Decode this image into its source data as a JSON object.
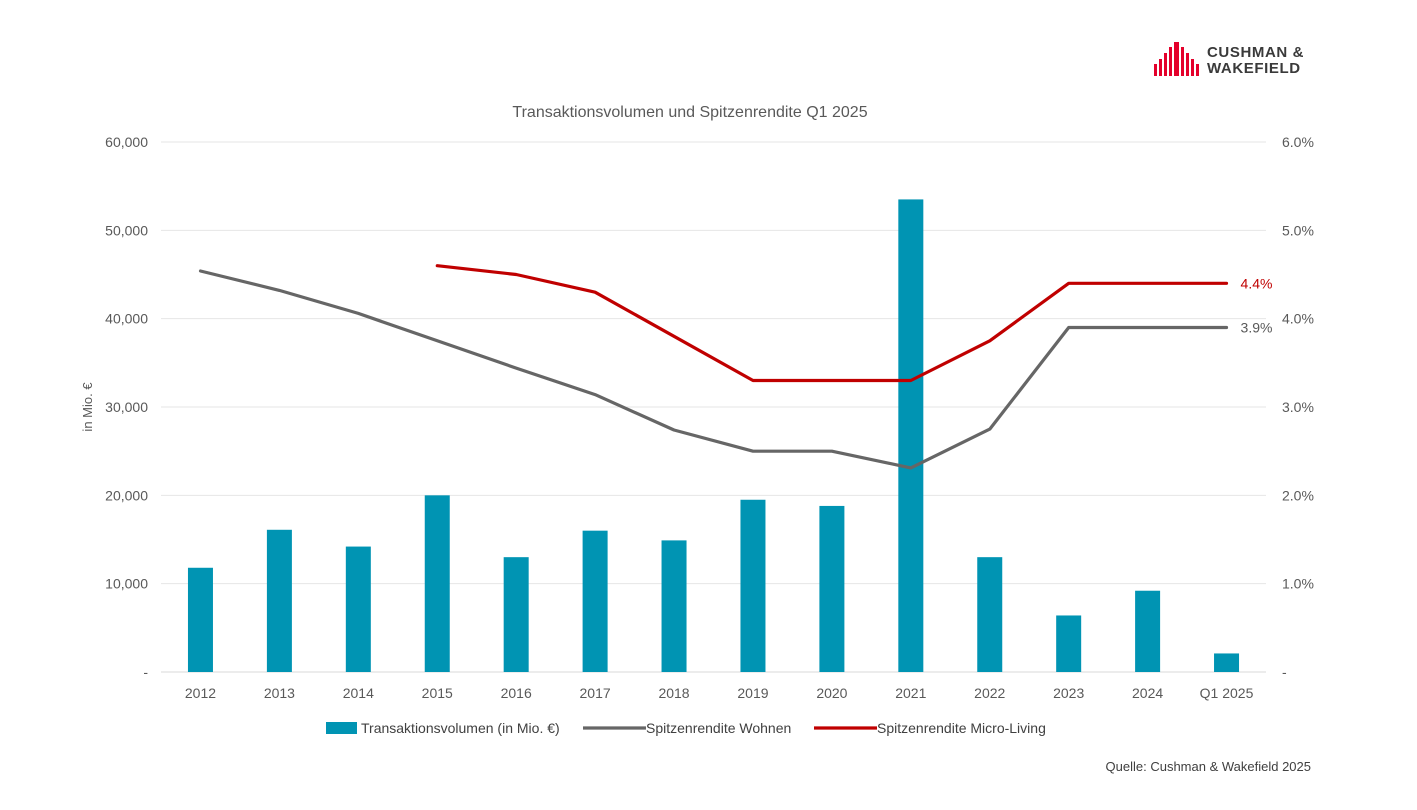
{
  "logo": {
    "line1": "CUSHMAN &",
    "line2": "WAKEFIELD"
  },
  "source": "Quelle: Cushman & Wakefield 2025",
  "chart_data": {
    "type": "bar+line",
    "title": "Transaktionsvolumen und Spitzenrendite Q1 2025",
    "ylabel": "in Mio. €",
    "y2label": "",
    "categories": [
      "2012",
      "2013",
      "2014",
      "2015",
      "2016",
      "2017",
      "2018",
      "2019",
      "2020",
      "2021",
      "2022",
      "2023",
      "2024",
      "Q1 2025"
    ],
    "ylim": [
      0,
      60000
    ],
    "y2lim": [
      0,
      6.0
    ],
    "y_ticks": [
      "-",
      "10,000",
      "20,000",
      "30,000",
      "40,000",
      "50,000",
      "60,000"
    ],
    "y2_ticks": [
      "-",
      "1.0%",
      "2.0%",
      "3.0%",
      "4.0%",
      "5.0%",
      "6.0%"
    ],
    "grid": true,
    "legend_position": "bottom",
    "series": [
      {
        "name": "Transaktionsvolumen (in Mio. €)",
        "type": "bar",
        "axis": "left",
        "color": "#0094B3",
        "values": [
          11800,
          16100,
          14200,
          20000,
          13000,
          16000,
          14900,
          19500,
          18800,
          53500,
          13000,
          6400,
          9200,
          2100
        ]
      },
      {
        "name": "Spitzenrendite Wohnen",
        "type": "line",
        "axis": "right",
        "color": "#666666",
        "values": [
          4.54,
          4.32,
          4.06,
          3.75,
          3.44,
          3.14,
          2.74,
          2.5,
          2.5,
          2.31,
          2.75,
          3.9,
          3.9,
          3.9
        ],
        "end_label": "3.9%"
      },
      {
        "name": "Spitzenrendite Micro-Living",
        "type": "line",
        "axis": "right",
        "color": "#C00000",
        "values": [
          null,
          null,
          null,
          4.6,
          4.5,
          4.3,
          3.8,
          3.3,
          3.3,
          3.3,
          3.75,
          4.4,
          4.4,
          4.4
        ],
        "end_label": "4.4%"
      }
    ]
  }
}
